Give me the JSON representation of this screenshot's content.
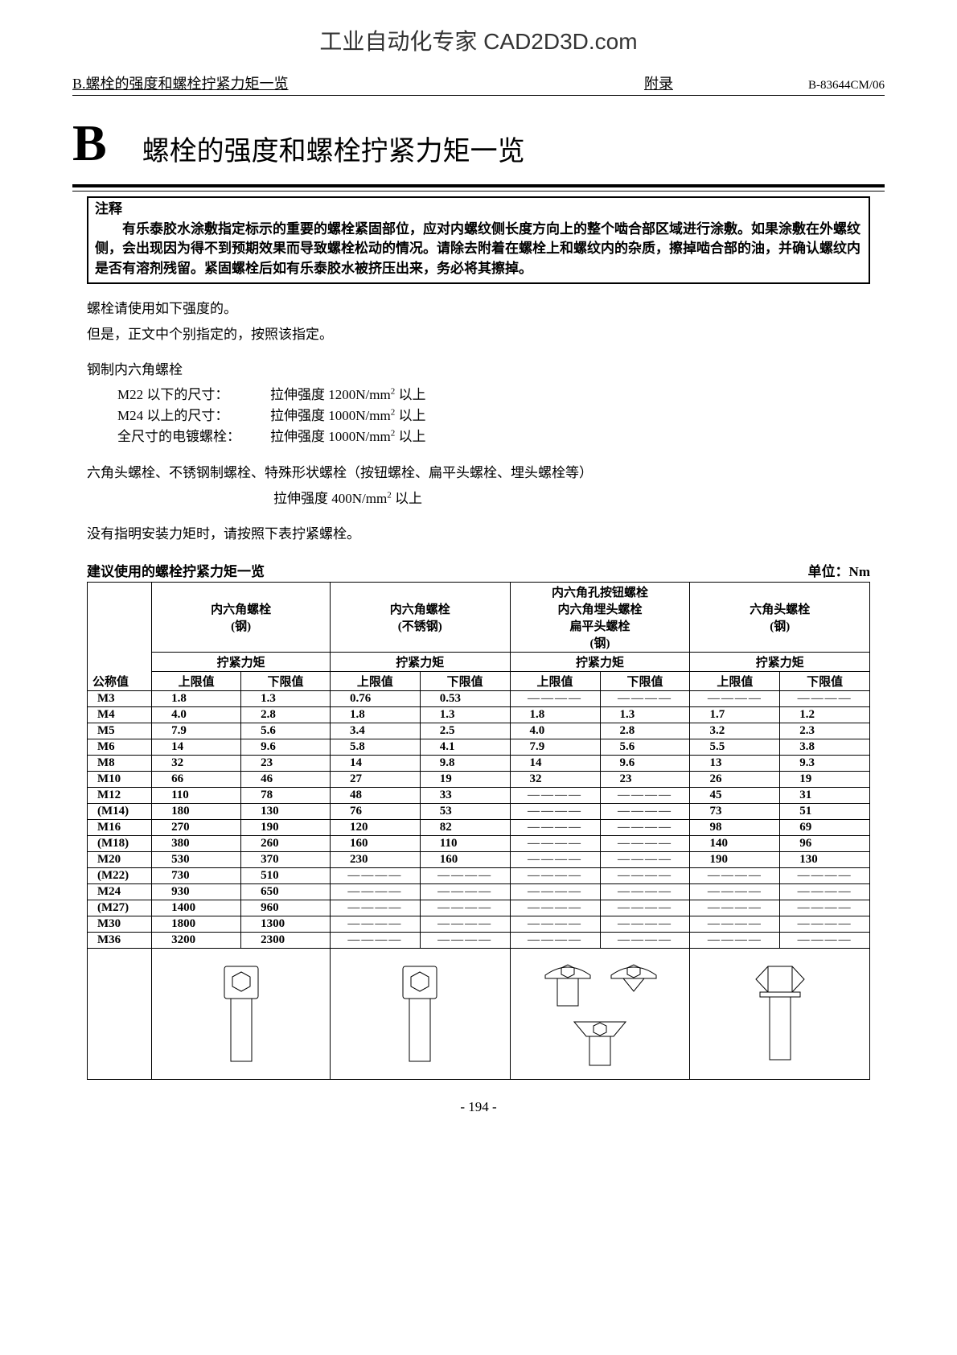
{
  "watermark": "工业自动化专家 CAD2D3D.com",
  "header": {
    "left_prefix": "B.  ",
    "left_title": "螺栓的强度和螺栓拧紧力矩一览",
    "center": "附录",
    "right": "B-83644CM/06"
  },
  "appendix": {
    "letter": "B",
    "name": "螺栓的强度和螺栓拧紧力矩一览"
  },
  "note": {
    "title": "注释",
    "body": "有乐泰胶水涂敷指定标示的重要的螺栓紧固部位，应对内螺纹侧长度方向上的整个啮合部区域进行涂敷。如果涂敷在外螺纹侧，会出现因为得不到预期效果而导致螺栓松动的情况。请除去附着在螺栓上和螺纹内的杂质，擦掉啮合部的油，并确认螺纹内是否有溶剂残留。紧固螺栓后如有乐泰胶水被挤压出来，务必将其擦掉。"
  },
  "body": {
    "line1": "螺栓请使用如下强度的。",
    "line2": "但是，正文中个别指定的，按照该指定。",
    "steel_title": "钢制内六角螺栓",
    "spec1_label": "M22 以下的尺寸：",
    "spec1_value": "拉伸强度 1200N/mm² 以上",
    "spec2_label": "M24 以上的尺寸：",
    "spec2_value": "拉伸强度 1000N/mm² 以上",
    "spec3_label": "全尺寸的电镀螺栓：",
    "spec3_value": "拉伸强度 1000N/mm² 以上",
    "hex_line": "六角头螺栓、不锈钢制螺栓、特殊形状螺栓（按钮螺栓、扁平头螺栓、埋头螺栓等）",
    "hex_spec": "拉伸强度 400N/mm² 以上",
    "no_torque_line": "没有指明安装力矩时，请按照下表拧紧螺栓。"
  },
  "table": {
    "title": "建议使用的螺栓拧紧力矩一览",
    "unit": "单位：Nm",
    "nominal_header": "公称值",
    "groups": [
      {
        "name": "内六角螺栓",
        "material": "(钢)"
      },
      {
        "name": "内六角螺栓",
        "material": "(不锈钢)"
      },
      {
        "name_lines": [
          "内六角孔按钮螺栓",
          "内六角埋头螺栓",
          "扁平头螺栓"
        ],
        "material": "(钢)"
      },
      {
        "name": "六角头螺栓",
        "material": "(钢)"
      }
    ],
    "torque_header": "拧紧力矩",
    "upper": "上限值",
    "lower": "下限值",
    "dash": "――――",
    "rows": [
      {
        "n": "M3",
        "v": [
          "1.8",
          "1.3",
          "0.76",
          "0.53",
          "-",
          "-",
          "-",
          "-"
        ]
      },
      {
        "n": "M4",
        "v": [
          "4.0",
          "2.8",
          "1.8",
          "1.3",
          "1.8",
          "1.3",
          "1.7",
          "1.2"
        ]
      },
      {
        "n": "M5",
        "v": [
          "7.9",
          "5.6",
          "3.4",
          "2.5",
          "4.0",
          "2.8",
          "3.2",
          "2.3"
        ]
      },
      {
        "n": "M6",
        "v": [
          "14",
          "9.6",
          "5.8",
          "4.1",
          "7.9",
          "5.6",
          "5.5",
          "3.8"
        ]
      },
      {
        "n": "M8",
        "v": [
          "32",
          "23",
          "14",
          "9.8",
          "14",
          "9.6",
          "13",
          "9.3"
        ]
      },
      {
        "n": "M10",
        "v": [
          "66",
          "46",
          "27",
          "19",
          "32",
          "23",
          "26",
          "19"
        ]
      },
      {
        "n": "M12",
        "v": [
          "110",
          "78",
          "48",
          "33",
          "-",
          "-",
          "45",
          "31"
        ]
      },
      {
        "n": "(M14)",
        "v": [
          "180",
          "130",
          "76",
          "53",
          "-",
          "-",
          "73",
          "51"
        ]
      },
      {
        "n": "M16",
        "v": [
          "270",
          "190",
          "120",
          "82",
          "-",
          "-",
          "98",
          "69"
        ]
      },
      {
        "n": "(M18)",
        "v": [
          "380",
          "260",
          "160",
          "110",
          "-",
          "-",
          "140",
          "96"
        ]
      },
      {
        "n": "M20",
        "v": [
          "530",
          "370",
          "230",
          "160",
          "-",
          "-",
          "190",
          "130"
        ]
      },
      {
        "n": "(M22)",
        "v": [
          "730",
          "510",
          "-",
          "-",
          "-",
          "-",
          "-",
          "-"
        ]
      },
      {
        "n": "M24",
        "v": [
          "930",
          "650",
          "-",
          "-",
          "-",
          "-",
          "-",
          "-"
        ]
      },
      {
        "n": "(M27)",
        "v": [
          "1400",
          "960",
          "-",
          "-",
          "-",
          "-",
          "-",
          "-"
        ]
      },
      {
        "n": "M30",
        "v": [
          "1800",
          "1300",
          "-",
          "-",
          "-",
          "-",
          "-",
          "-"
        ]
      },
      {
        "n": "M36",
        "v": [
          "3200",
          "2300",
          "-",
          "-",
          "-",
          "-",
          "-",
          "-"
        ]
      }
    ]
  },
  "page_number": "- 194 -"
}
